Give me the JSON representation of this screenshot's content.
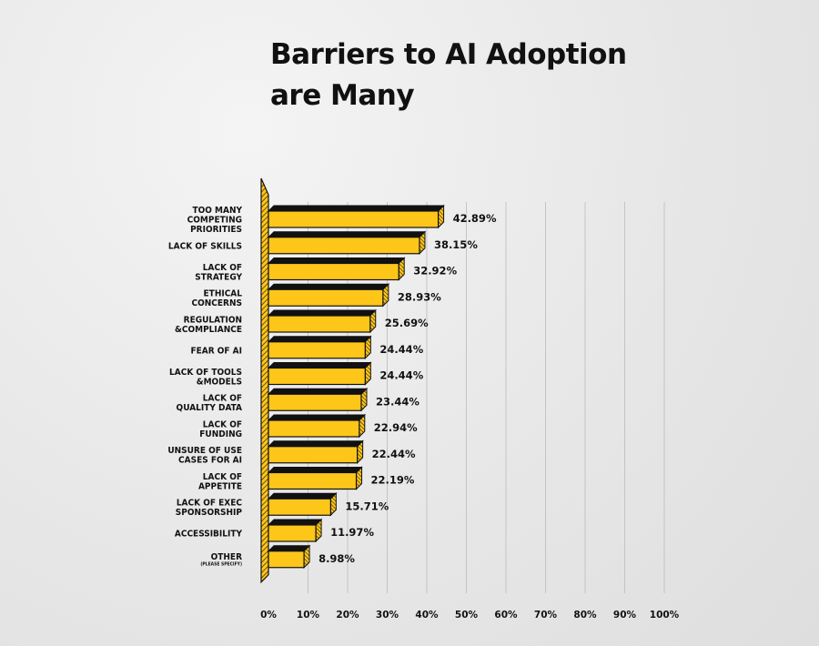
{
  "title_lines": [
    "Barriers to AI Adoption",
    "are Many"
  ],
  "chart_data": {
    "type": "bar",
    "orientation": "horizontal",
    "title": "Barriers to AI Adoption are Many",
    "categories": [
      [
        "TOO MANY",
        "COMPETING",
        "PRIORITIES"
      ],
      [
        "LACK OF SKILLS"
      ],
      [
        "LACK OF",
        "STRATEGY"
      ],
      [
        "ETHICAL",
        "CONCERNS"
      ],
      [
        "REGULATION",
        "&COMPLIANCE"
      ],
      [
        "FEAR OF AI"
      ],
      [
        "LACK OF TOOLS",
        "&MODELS"
      ],
      [
        "LACK OF",
        "QUALITY DATA"
      ],
      [
        "LACK OF",
        "FUNDING"
      ],
      [
        "UNSURE OF USE",
        "CASES FOR AI"
      ],
      [
        "LACK OF",
        "APPETITE"
      ],
      [
        "LACK OF EXEC",
        "SPONSORSHIP"
      ],
      [
        "ACCESSIBILITY"
      ],
      [
        "OTHER"
      ]
    ],
    "category_notes": [
      "",
      "",
      "",
      "",
      "",
      "",
      "",
      "",
      "",
      "",
      "",
      "",
      "",
      "(PLEASE SPECIFY)"
    ],
    "values": [
      42.89,
      38.15,
      32.92,
      28.93,
      25.69,
      24.44,
      24.44,
      23.44,
      22.94,
      22.44,
      22.19,
      15.71,
      11.97,
      8.98
    ],
    "value_labels": [
      "42.89%",
      "38.15%",
      "32.92%",
      "28.93%",
      "25.69%",
      "24.44%",
      "24.44%",
      "23.44%",
      "22.94%",
      "22.44%",
      "22.19%",
      "15.71%",
      "11.97%",
      "8.98%"
    ],
    "xlim": [
      0,
      100
    ],
    "x_ticks": [
      "0%",
      "10%",
      "20%",
      "30%",
      "40%",
      "50%",
      "60%",
      "70%",
      "80%",
      "90%",
      "100%"
    ],
    "grid": true,
    "bar_color": "#ffc61a",
    "bar_edge_color": "#111111"
  }
}
